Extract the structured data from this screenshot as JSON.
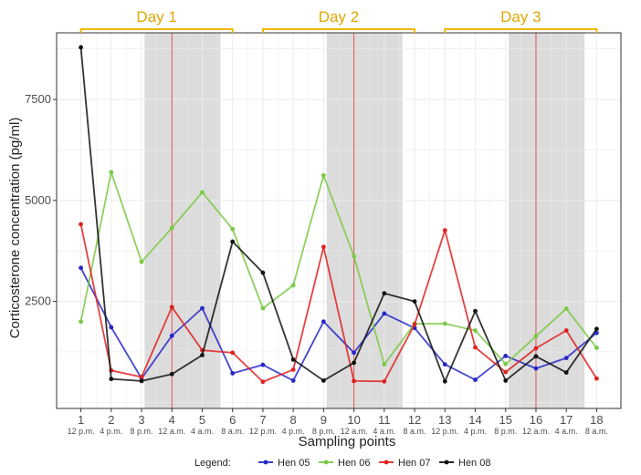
{
  "chart_data": {
    "type": "line",
    "xlabel": "Sampling points",
    "ylabel": "Corticosterone concentration (pg/ml)",
    "x": [
      1,
      2,
      3,
      4,
      5,
      6,
      7,
      8,
      9,
      10,
      11,
      12,
      13,
      14,
      15,
      16,
      17,
      18
    ],
    "time_labels": [
      "12 p.m.",
      "4 p.m.",
      "8 p.m.",
      "12 a.m.",
      "4 a.m.",
      "8 a.m.",
      "12 p.m.",
      "4 p.m.",
      "8 p.m.",
      "12 a.m.",
      "4 a.m.",
      "8 a.m.",
      "12 p.m.",
      "4 p.m.",
      "8 p.m.",
      "12 a.m.",
      "4 a.m.",
      "8 a.m."
    ],
    "y_ticks": [
      2500,
      5000,
      7500
    ],
    "y_tick_labels": [
      "2500",
      "5000",
      "7500"
    ],
    "ylim": [
      -150,
      9150
    ],
    "xlim": [
      0.2,
      18.8
    ],
    "days": [
      {
        "label": "Day 1",
        "from": 1,
        "to": 6
      },
      {
        "label": "Day 2",
        "from": 7,
        "to": 12
      },
      {
        "label": "Day 3",
        "from": 13,
        "to": 18
      }
    ],
    "night_periods": [
      [
        3.1,
        5.6
      ],
      [
        9.1,
        11.6
      ],
      [
        15.1,
        17.6
      ]
    ],
    "midnight_lines": [
      4,
      10,
      16
    ],
    "legend_title": "Legend:",
    "series": [
      {
        "name": "Hen 05",
        "color": "#2626c9",
        "values": [
          3330,
          1860,
          590,
          1650,
          2330,
          720,
          930,
          540,
          2000,
          1230,
          2200,
          1840,
          940,
          560,
          1150,
          840,
          1100,
          1720
        ]
      },
      {
        "name": "Hen 06",
        "color": "#7ac943",
        "values": [
          2000,
          5700,
          3480,
          4320,
          5200,
          4290,
          2330,
          2900,
          5620,
          3620,
          940,
          1950,
          1950,
          1780,
          950,
          1640,
          2320,
          1350
        ]
      },
      {
        "name": "Hen 07",
        "color": "#e02020",
        "values": [
          4410,
          790,
          630,
          2360,
          1290,
          1230,
          510,
          810,
          3850,
          530,
          520,
          1930,
          4260,
          1360,
          750,
          1340,
          1780,
          590
        ]
      },
      {
        "name": "Hen 08",
        "color": "#111111",
        "values": [
          8790,
          580,
          530,
          700,
          1170,
          3980,
          3210,
          1060,
          540,
          980,
          2700,
          2500,
          520,
          2260,
          540,
          1140,
          740,
          1820
        ]
      }
    ],
    "accents": {
      "day_bracket": "#f2b705",
      "day_text": "#e0a800",
      "night_band": "#dcdcdc",
      "midnight_line": "#e05050",
      "grid": "#ebebeb"
    }
  }
}
